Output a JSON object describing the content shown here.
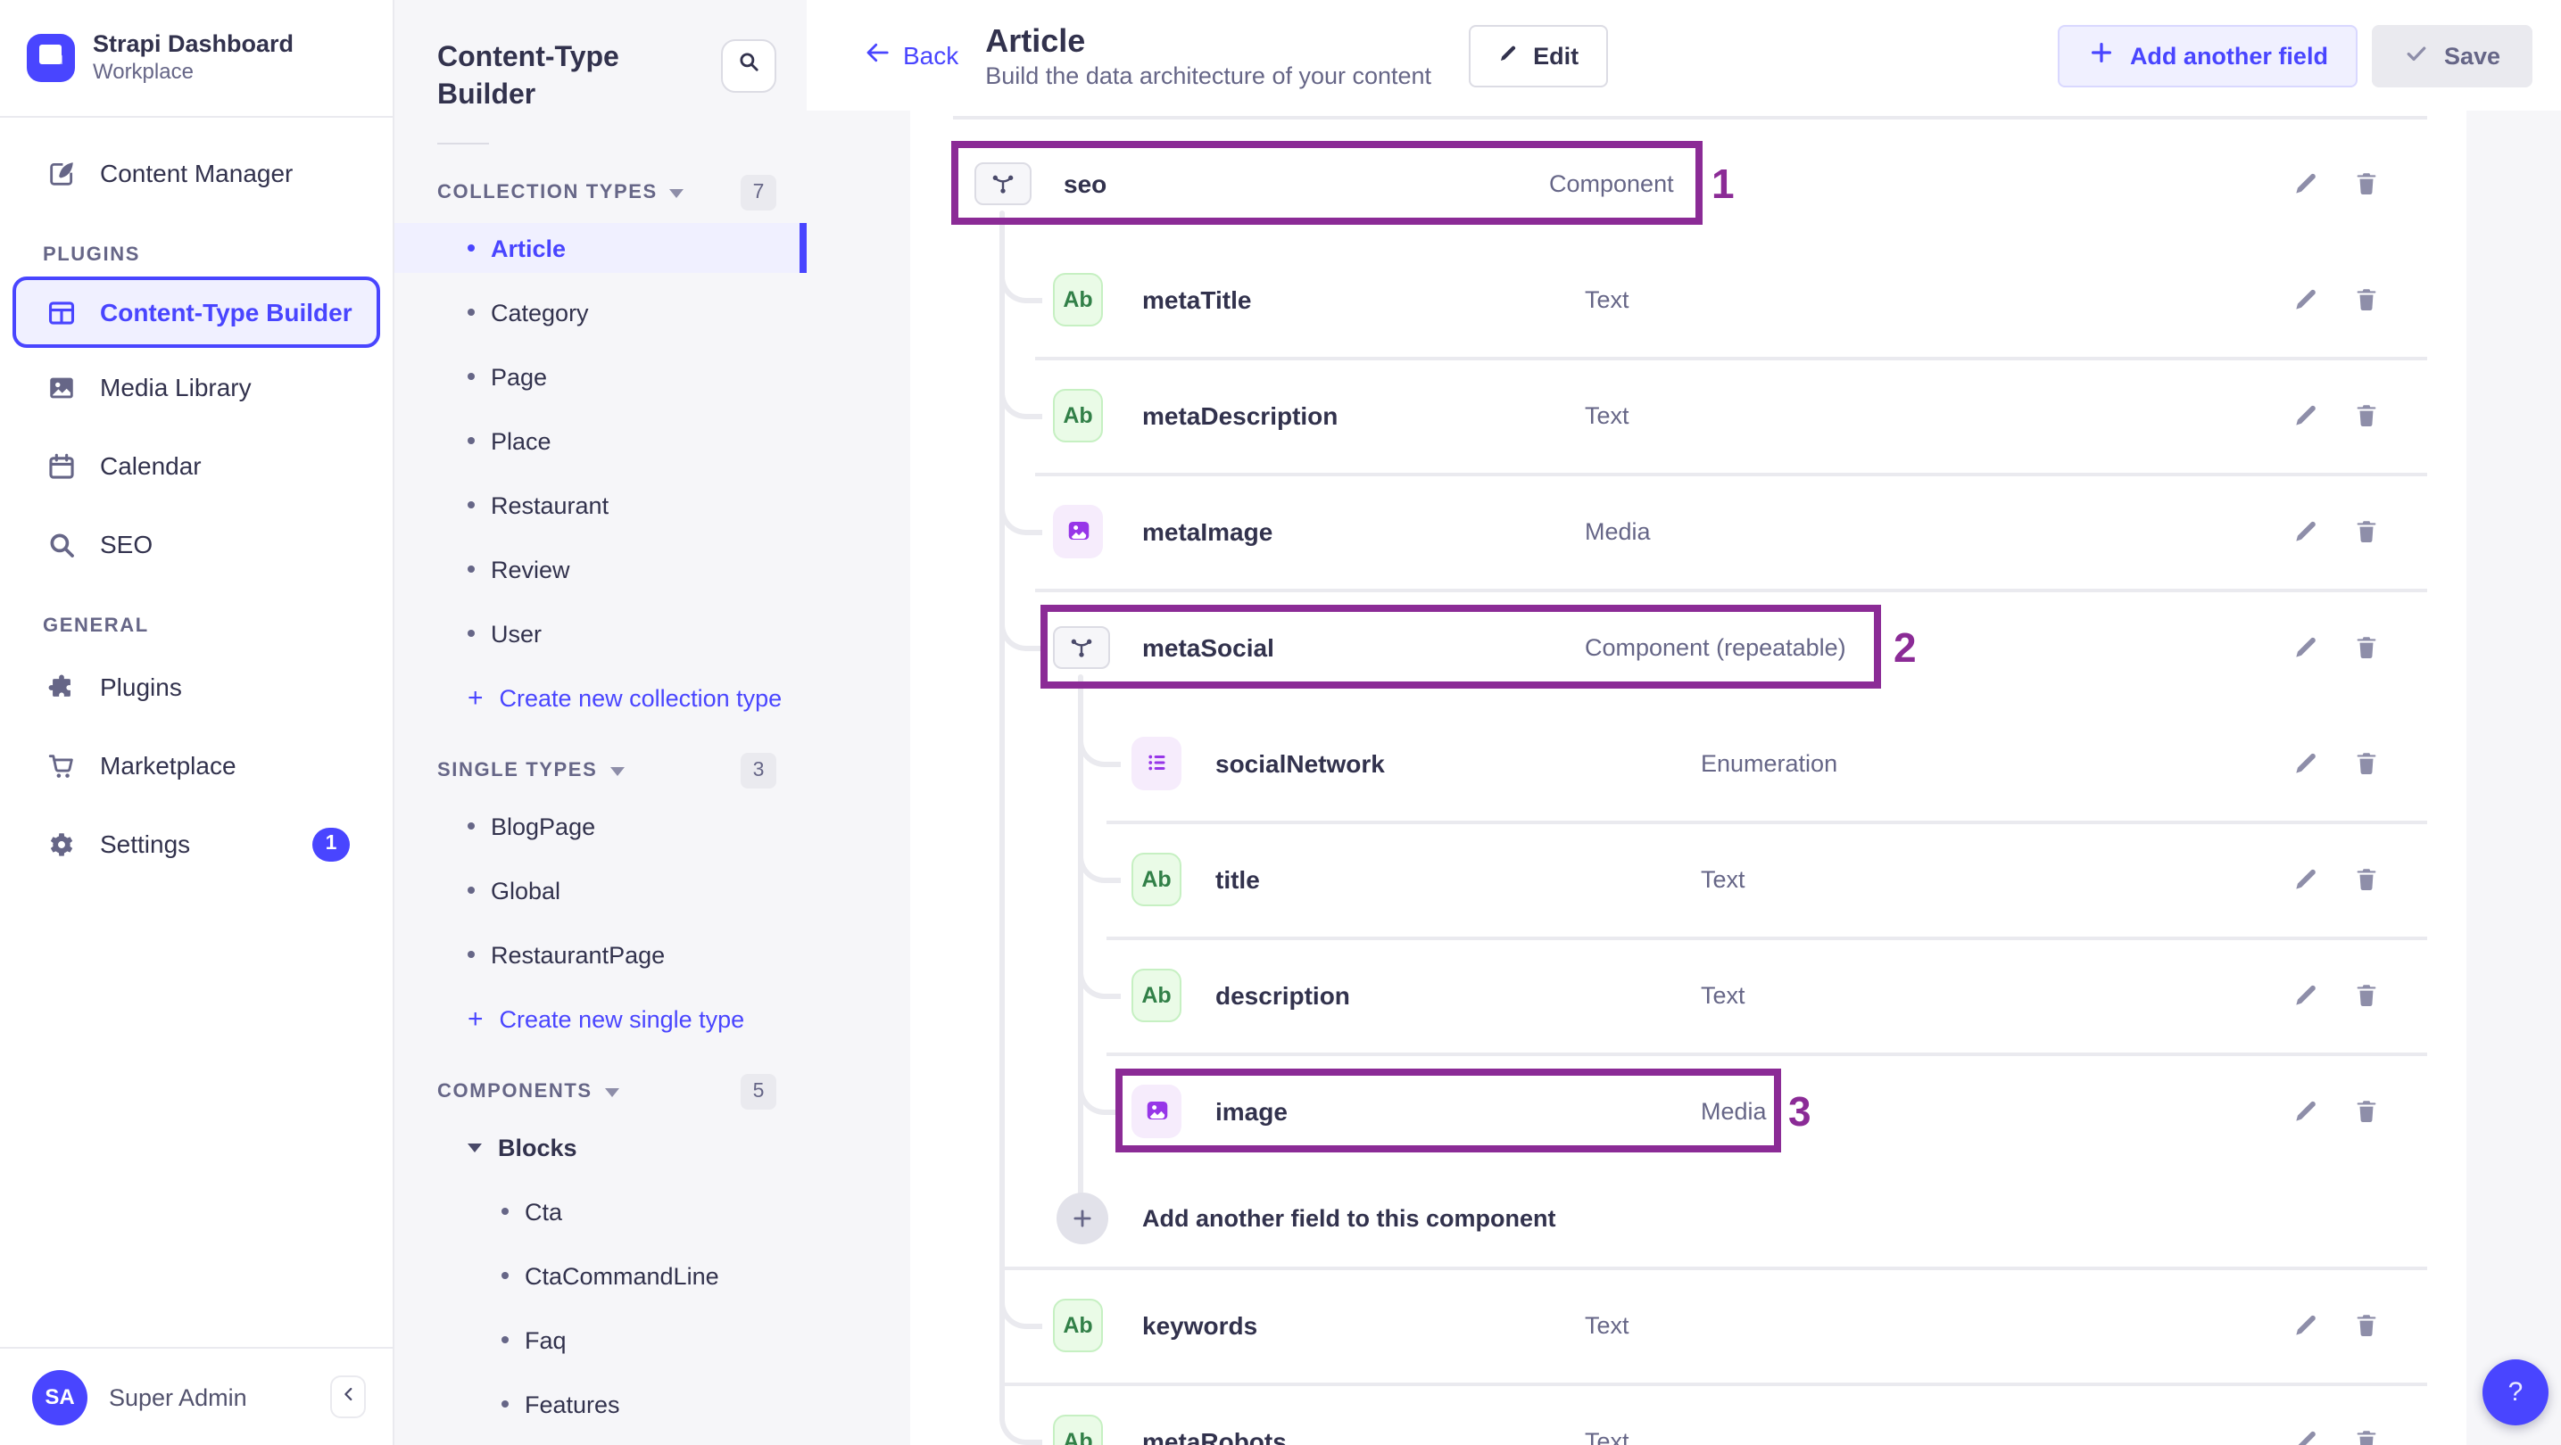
{
  "colors": {
    "primary": "#4945ff",
    "primary_light": "#f0f0ff",
    "annotation": "#8b2b96",
    "text_dark": "#32324d",
    "text_mid": "#666687",
    "green_icon": "#328048",
    "purple_icon": "#9736e8"
  },
  "brand": {
    "title": "Strapi Dashboard",
    "subtitle": "Workplace",
    "logo_icon": "strapi-logo-icon"
  },
  "sidebar": {
    "primary_item": {
      "label": "Content Manager",
      "icon": "pen-square-icon"
    },
    "sections": [
      {
        "label": "PLUGINS",
        "items": [
          {
            "label": "Content-Type Builder",
            "icon": "layout-icon",
            "active": true
          },
          {
            "label": "Media Library",
            "icon": "image-icon"
          },
          {
            "label": "Calendar",
            "icon": "calendar-icon"
          },
          {
            "label": "SEO",
            "icon": "magnifier-icon"
          }
        ]
      },
      {
        "label": "GENERAL",
        "items": [
          {
            "label": "Plugins",
            "icon": "puzzle-icon"
          },
          {
            "label": "Marketplace",
            "icon": "cart-icon"
          },
          {
            "label": "Settings",
            "icon": "gear-icon",
            "badge": "1"
          }
        ]
      }
    ],
    "user": {
      "initials": "SA",
      "name": "Super Admin",
      "collapse_icon": "chevron-left-icon"
    }
  },
  "builder_panel": {
    "title": "Content-Type Builder",
    "search_icon": "magnifier-icon",
    "sections": [
      {
        "label": "COLLECTION TYPES",
        "count": "7",
        "items": [
          "Article",
          "Category",
          "Page",
          "Place",
          "Restaurant",
          "Review",
          "User"
        ],
        "active_item": "Article",
        "action": "Create new collection type"
      },
      {
        "label": "SINGLE TYPES",
        "count": "3",
        "items": [
          "BlogPage",
          "Global",
          "RestaurantPage"
        ],
        "action": "Create new single type"
      },
      {
        "label": "COMPONENTS",
        "count": "5",
        "group": {
          "label": "Blocks",
          "items": [
            "Cta",
            "CtaCommandLine",
            "Faq",
            "Features"
          ]
        }
      }
    ]
  },
  "header": {
    "back": "Back",
    "title": "Article",
    "subtitle": "Build the data architecture of your content",
    "edit": "Edit",
    "add_field": "Add another field",
    "save": "Save"
  },
  "main": {
    "fields": [
      {
        "name": "seo",
        "type": "Component",
        "icon": "component-icon",
        "level": 0,
        "divider": null,
        "annotation": "1"
      },
      {
        "name": "metaTitle",
        "type": "Text",
        "icon": "text-field-icon",
        "level": 1,
        "divider": null
      },
      {
        "name": "metaDescription",
        "type": "Text",
        "icon": "text-field-icon",
        "level": 1,
        "divider": "l1"
      },
      {
        "name": "metaImage",
        "type": "Media",
        "icon": "media-field-icon",
        "level": 1,
        "divider": "l1"
      },
      {
        "name": "metaSocial",
        "type": "Component (repeatable)",
        "icon": "component-icon",
        "level": 1,
        "divider": "l1",
        "annotation": "2"
      },
      {
        "name": "socialNetwork",
        "type": "Enumeration",
        "icon": "enum-field-icon",
        "level": 2,
        "divider": null
      },
      {
        "name": "title",
        "type": "Text",
        "icon": "text-field-icon",
        "level": 2,
        "divider": "l2"
      },
      {
        "name": "description",
        "type": "Text",
        "icon": "text-field-icon",
        "level": 2,
        "divider": "l2"
      },
      {
        "name": "image",
        "type": "Media",
        "icon": "media-field-icon",
        "level": 2,
        "divider": "l2",
        "annotation": "3"
      },
      {
        "name": "keywords",
        "type": "Text",
        "icon": "text-field-icon",
        "level": 1,
        "divider": "root"
      },
      {
        "name": "metaRobots",
        "type": "Text",
        "icon": "text-field-icon",
        "level": 1,
        "divider": "root"
      }
    ],
    "text_icon_glyph": "Ab",
    "add_component_field": "Add another field to this component",
    "row_actions": {
      "edit_icon": "pencil-icon",
      "delete_icon": "trash-icon"
    },
    "annotations": [
      "1",
      "2",
      "3"
    ],
    "help": "?"
  }
}
